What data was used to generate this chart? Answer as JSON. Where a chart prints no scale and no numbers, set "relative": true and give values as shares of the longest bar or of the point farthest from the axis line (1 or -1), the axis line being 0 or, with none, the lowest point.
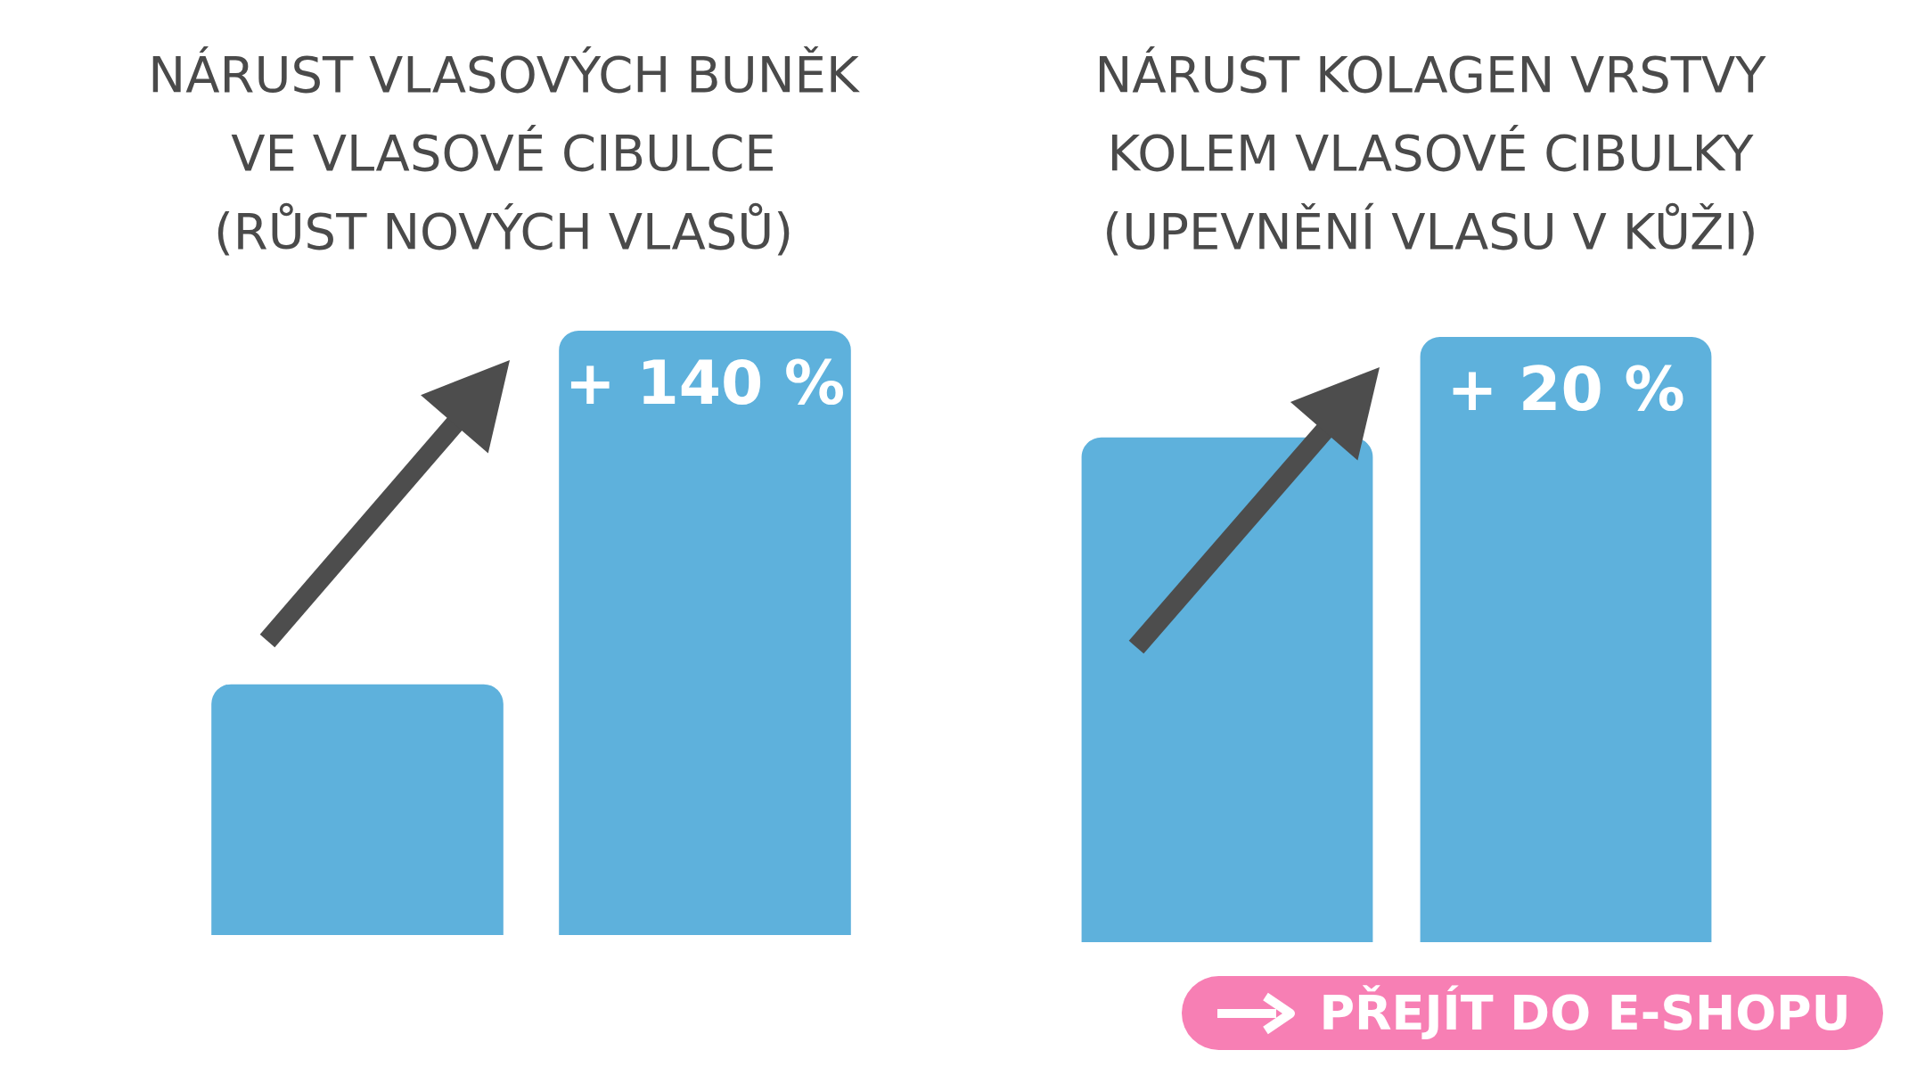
{
  "chart_data": [
    {
      "type": "bar",
      "title": "NÁRUST VLASOVÝCH BUNĚK\nVE VLASOVÉ CIBULCE\n(RŮST NOVÝCH VLASŮ)",
      "categories": [
        null,
        null
      ],
      "values": [
        0.415,
        1
      ],
      "color": "#5eb1dc",
      "relative": true,
      "tick_labels": false,
      "annotations": [
        "+ 140 %"
      ]
    },
    {
      "type": "bar",
      "title": "NÁRUST KOLAGEN VRSTVY\nKOLEM VLASOVÉ CIBULKY\n(UPEVNĚNÍ VLASU V KŮŽI)",
      "categories": [
        null,
        null
      ],
      "values": [
        0.834,
        1
      ],
      "color": "#5eb1dc",
      "relative": true,
      "tick_labels": false,
      "annotations": [
        "+ 20 %",
        "PŘEJÍT DO E-SHOPU"
      ]
    }
  ]
}
